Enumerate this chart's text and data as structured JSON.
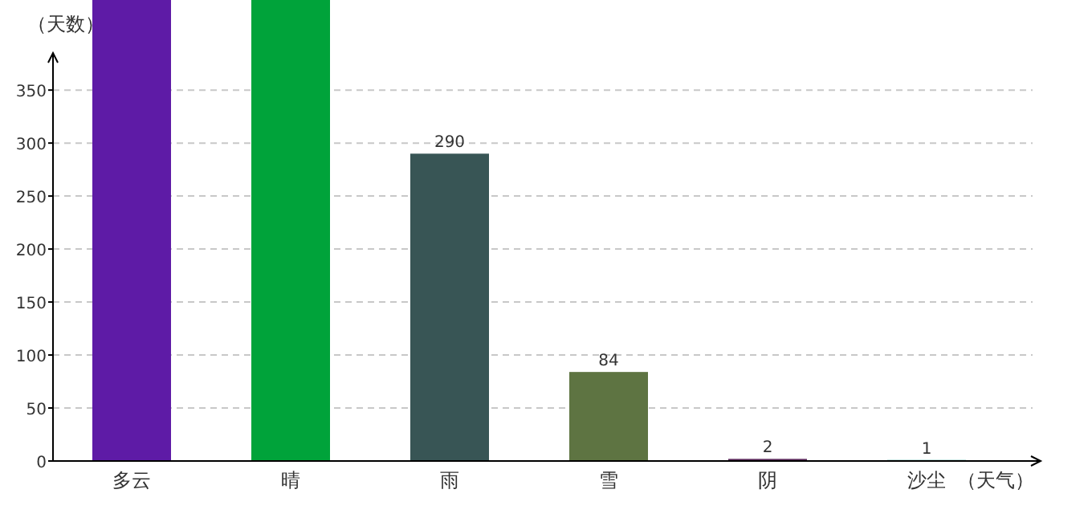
{
  "chart_data": {
    "type": "bar",
    "xlabel": "（天气）",
    "ylabel": "（天数）",
    "categories": [
      "多云",
      "晴",
      "雨",
      "雪",
      "阴",
      "沙尘"
    ],
    "values": [
      435,
      435,
      290,
      84,
      2,
      1
    ],
    "colors": [
      "#5e1ba6",
      "#00a33a",
      "#385555",
      "#5e7442",
      "#5c2a5c",
      "#4fa79f"
    ],
    "value_labels": [
      null,
      null,
      "290",
      "84",
      "2",
      "1"
    ],
    "ylim": [
      0,
      435
    ],
    "yticks": [
      0,
      50,
      100,
      150,
      200,
      250,
      300,
      350
    ],
    "grid": "y"
  }
}
